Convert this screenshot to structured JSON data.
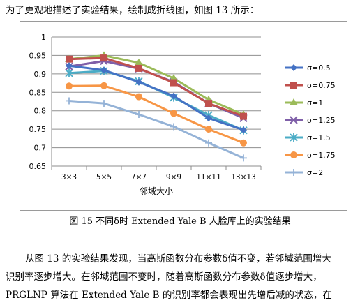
{
  "paper": {
    "intro": "为了更观地描述了实验结果，绘制成折线图，如图 13 所示：",
    "caption": "图 15  不同δ时 Extended Yale B  人脸库上的实验结果",
    "paragraph": [
      "从图 13 的实验结果发现，当高斯函数分布参数δ值不变，若邻域范围增大",
      "识别率逐步增大。在邻域范围不变时，随着高斯函数分布参数δ值逐步增大，",
      "PRGLNP  算法在   Extended Yale B  的识别率都会表现出先增后减的状态，在"
    ]
  },
  "chart_data": {
    "type": "line",
    "title": "",
    "xlabel": "邻域大小",
    "ylabel": "",
    "categories": [
      "3×3",
      "5×5",
      "7×7",
      "9×9",
      "11×11",
      "13×13"
    ],
    "ylim": [
      0.65,
      1
    ],
    "yticks": [
      "1",
      "0.95",
      "0.9",
      "0.85",
      "0.8",
      "0.75",
      "0.7",
      "0.65"
    ],
    "grid": true,
    "legend": "right",
    "series": [
      {
        "name": "σ=0.5",
        "color": "#4472C4",
        "marker": "diamond",
        "values": [
          0.922,
          0.91,
          0.878,
          0.84,
          0.78,
          0.748
        ]
      },
      {
        "name": "σ=0.75",
        "color": "#C0504D",
        "marker": "square",
        "values": [
          0.94,
          0.943,
          0.915,
          0.876,
          0.82,
          0.785
        ]
      },
      {
        "name": "σ=1",
        "color": "#9BBB59",
        "marker": "triangle",
        "values": [
          0.94,
          0.95,
          0.93,
          0.888,
          0.83,
          0.79
        ]
      },
      {
        "name": "σ=1.25",
        "color": "#7F5FA8",
        "marker": "x",
        "values": [
          0.92,
          0.935,
          0.914,
          0.878,
          0.82,
          0.78
        ]
      },
      {
        "name": "σ=1.5",
        "color": "#4BACC6",
        "marker": "star",
        "values": [
          0.902,
          0.908,
          0.88,
          0.836,
          0.788,
          0.747
        ]
      },
      {
        "name": "σ=1.75",
        "color": "#F79646",
        "marker": "circle",
        "values": [
          0.867,
          0.868,
          0.838,
          0.793,
          0.75,
          0.713
        ]
      },
      {
        "name": "σ=2",
        "color": "#95B3D7",
        "marker": "plus",
        "values": [
          0.827,
          0.82,
          0.79,
          0.757,
          0.713,
          0.672
        ]
      }
    ]
  }
}
